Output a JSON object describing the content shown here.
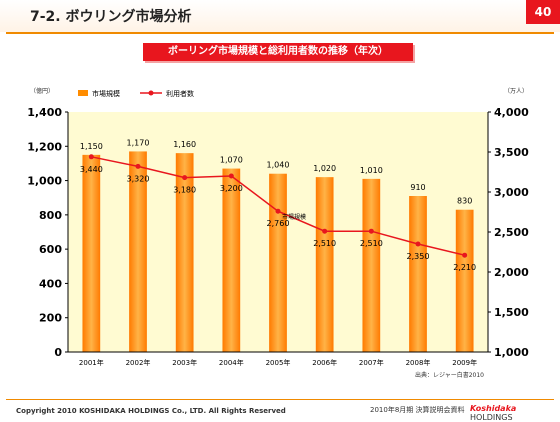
{
  "header": {
    "title": "7-2. ボウリング市場分析",
    "page_number": "40"
  },
  "subtitle": "ボーリング市場規模と総利用者数の推移（年次）",
  "footer": {
    "copyright": "Copyright 2010 KOSHIDAKA HOLDINGS Co., LTD. All Rights Reserved",
    "doc": "2010年8月期 決算説明会資料",
    "logo_brand": "Koshidaka",
    "logo_suffix": "HOLDINGS"
  },
  "colors": {
    "bar": "#ff8c00",
    "line": "#e8161e",
    "accent": "#f08a00",
    "plot_bg": "#fffbd2"
  },
  "chart_data": {
    "type": "bar",
    "categories": [
      "2001年",
      "2002年",
      "2003年",
      "2004年",
      "2005年",
      "2006年",
      "2007年",
      "2008年",
      "2009年"
    ],
    "series": [
      {
        "name": "市場規模",
        "type": "bar",
        "axis": "left",
        "values": [
          1150,
          1170,
          1160,
          1070,
          1040,
          1020,
          1010,
          910,
          830
        ]
      },
      {
        "name": "利用者数",
        "type": "line",
        "axis": "right",
        "values": [
          3440,
          3320,
          3180,
          3200,
          2760,
          2510,
          2510,
          2350,
          2210
        ]
      }
    ],
    "ylabel_left": "（億円）",
    "ylabel_right": "（万人）",
    "ylim_left": [
      0,
      1400
    ],
    "yticks_left": [
      "0",
      "200",
      "400",
      "600",
      "800",
      "1,000",
      "1,200",
      "1,400"
    ],
    "ylim_right": [
      1000,
      4000
    ],
    "yticks_right": [
      "1,000",
      "1,500",
      "2,000",
      "2,500",
      "3,000",
      "3,500",
      "4,000"
    ],
    "bar_labels": [
      "1,150",
      "1,170",
      "1,160",
      "1,070",
      "1,040",
      "1,020",
      "1,010",
      "910",
      "830"
    ],
    "line_labels": [
      "3,440",
      "3,320",
      "3,180",
      "3,200",
      "2,760",
      "2,510",
      "2,510",
      "2,350",
      "2,210"
    ],
    "annotation": "市場規模",
    "source": "出典：レジャー白書2010",
    "legend_position": "top-left",
    "grid": false
  }
}
